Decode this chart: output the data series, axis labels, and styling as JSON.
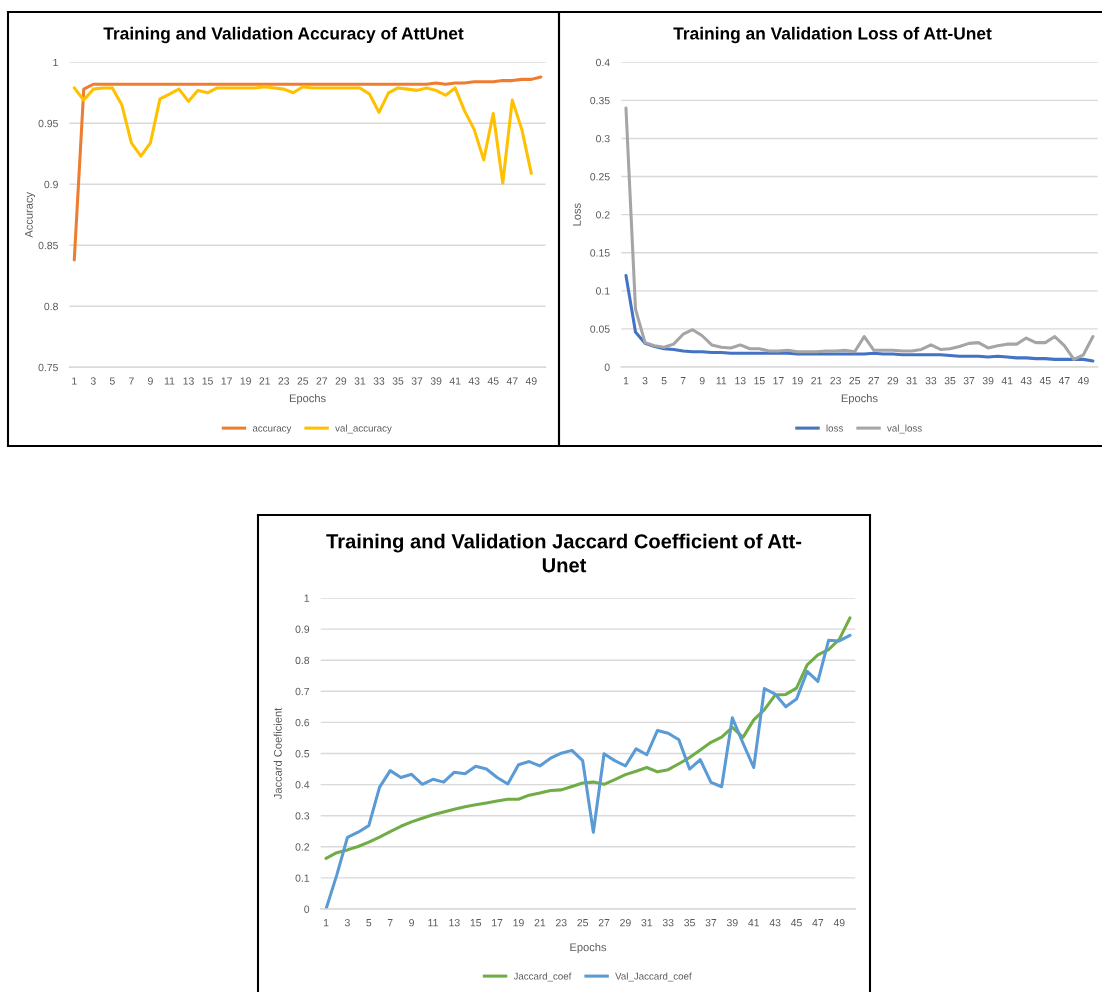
{
  "chart_data": [
    {
      "type": "line",
      "title": "Training and Validation Accuracy of AttUnet",
      "xlabel": "Epochs",
      "ylabel": "Accuracy",
      "categories": [
        "1",
        null,
        "3",
        null,
        "5",
        null,
        "7",
        null,
        "9",
        null,
        "11",
        null,
        "13",
        null,
        "15",
        null,
        "17",
        null,
        "19",
        null,
        "21",
        null,
        "23",
        null,
        "25",
        null,
        "27",
        null,
        "29",
        null,
        "31",
        null,
        "33",
        null,
        "35",
        null,
        "37",
        null,
        "39",
        null,
        "41",
        null,
        "43",
        null,
        "45",
        null,
        "47",
        null,
        "49",
        null
      ],
      "series": [
        {
          "name": "accuracy",
          "color": "#ed7d31",
          "values": [
            0.838,
            0.978,
            0.982,
            0.982,
            0.982,
            0.982,
            0.982,
            0.982,
            0.982,
            0.982,
            0.982,
            0.982,
            0.982,
            0.982,
            0.982,
            0.982,
            0.982,
            0.982,
            0.982,
            0.982,
            0.982,
            0.982,
            0.982,
            0.982,
            0.982,
            0.982,
            0.982,
            0.982,
            0.982,
            0.982,
            0.982,
            0.982,
            0.982,
            0.982,
            0.982,
            0.982,
            0.982,
            0.982,
            0.983,
            0.982,
            0.983,
            0.983,
            0.984,
            0.984,
            0.984,
            0.985,
            0.985,
            0.986,
            0.986,
            0.988
          ]
        },
        {
          "name": "val_accuracy",
          "color": "#ffc000",
          "values": [
            0.979,
            0.969,
            0.978,
            0.979,
            0.979,
            0.965,
            0.934,
            0.923,
            0.934,
            0.97,
            0.974,
            0.978,
            0.968,
            0.977,
            0.975,
            0.979,
            0.979,
            0.979,
            0.979,
            0.979,
            0.98,
            0.979,
            0.978,
            0.975,
            0.98,
            0.979,
            0.979,
            0.979,
            0.979,
            0.979,
            0.979,
            0.974,
            0.959,
            0.975,
            0.979,
            0.978,
            0.977,
            0.979,
            0.977,
            0.973,
            0.979,
            0.96,
            0.945,
            0.92,
            0.958,
            0.901,
            0.969,
            0.945,
            0.909,
            null
          ]
        }
      ],
      "ylim": [
        0.75,
        1
      ],
      "yticks": [
        0.75,
        0.8,
        0.85,
        0.9,
        0.95,
        1
      ],
      "grid": "y",
      "legend": "bottom"
    },
    {
      "type": "line",
      "title": "Training an Validation Loss of Att-Unet",
      "xlabel": "Epochs",
      "ylabel": "Loss",
      "categories": [
        "1",
        null,
        "3",
        null,
        "5",
        null,
        "7",
        null,
        "9",
        null,
        "11",
        null,
        "13",
        null,
        "15",
        null,
        "17",
        null,
        "19",
        null,
        "21",
        null,
        "23",
        null,
        "25",
        null,
        "27",
        null,
        "29",
        null,
        "31",
        null,
        "33",
        null,
        "35",
        null,
        "37",
        null,
        "39",
        null,
        "41",
        null,
        "43",
        null,
        "45",
        null,
        "47",
        null,
        "49",
        null
      ],
      "series": [
        {
          "name": "loss",
          "color": "#4472c4",
          "values": [
            0.12,
            0.046,
            0.031,
            0.027,
            0.024,
            0.023,
            0.021,
            0.02,
            0.02,
            0.019,
            0.019,
            0.018,
            0.018,
            0.018,
            0.018,
            0.018,
            0.018,
            0.018,
            0.017,
            0.017,
            0.017,
            0.017,
            0.017,
            0.017,
            0.017,
            0.017,
            0.018,
            0.017,
            0.017,
            0.016,
            0.016,
            0.016,
            0.016,
            0.016,
            0.015,
            0.014,
            0.014,
            0.014,
            0.013,
            0.014,
            0.013,
            0.012,
            0.012,
            0.011,
            0.011,
            0.01,
            0.01,
            0.01,
            0.01,
            0.008
          ]
        },
        {
          "name": "val_loss",
          "color": "#a5a5a5",
          "values": [
            0.34,
            0.076,
            0.032,
            0.028,
            0.026,
            0.03,
            0.043,
            0.049,
            0.041,
            0.029,
            0.026,
            0.025,
            0.029,
            0.024,
            0.024,
            0.021,
            0.021,
            0.022,
            0.02,
            0.02,
            0.02,
            0.021,
            0.021,
            0.022,
            0.02,
            0.04,
            0.022,
            0.022,
            0.022,
            0.021,
            0.021,
            0.023,
            0.029,
            0.023,
            0.024,
            0.027,
            0.031,
            0.032,
            0.025,
            0.028,
            0.03,
            0.03,
            0.038,
            0.032,
            0.032,
            0.04,
            0.028,
            0.01,
            0.016,
            0.04
          ]
        }
      ],
      "ylim": [
        0,
        0.4
      ],
      "yticks": [
        0,
        0.05,
        0.1,
        0.15,
        0.2,
        0.25,
        0.3,
        0.35,
        0.4
      ],
      "grid": "y",
      "legend": "bottom"
    },
    {
      "type": "line",
      "title": "Training and Validation Jaccard Coefficient of Att-Unet",
      "xlabel": "Epochs",
      "ylabel": "Jaccard Coeficient",
      "categories": [
        "1",
        null,
        "3",
        null,
        "5",
        null,
        "7",
        null,
        "9",
        null,
        "11",
        null,
        "13",
        null,
        "15",
        null,
        "17",
        null,
        "19",
        null,
        "21",
        null,
        "23",
        null,
        "25",
        null,
        "27",
        null,
        "29",
        null,
        "31",
        null,
        "33",
        null,
        "35",
        null,
        "37",
        null,
        "39",
        null,
        "41",
        null,
        "43",
        null,
        "45",
        null,
        "47",
        null,
        "49",
        null
      ],
      "series": [
        {
          "name": "Jaccard_coef",
          "color": "#70ad47",
          "values": [
            0.163,
            0.181,
            0.19,
            0.201,
            0.215,
            0.231,
            0.249,
            0.266,
            0.28,
            0.292,
            0.303,
            0.312,
            0.321,
            0.329,
            0.335,
            0.341,
            0.347,
            0.353,
            0.353,
            0.366,
            0.373,
            0.381,
            0.383,
            0.394,
            0.405,
            0.408,
            0.401,
            0.416,
            0.432,
            0.443,
            0.455,
            0.441,
            0.448,
            0.467,
            0.487,
            0.511,
            0.536,
            0.553,
            0.584,
            0.552,
            0.608,
            0.641,
            0.688,
            0.69,
            0.71,
            0.785,
            0.817,
            0.834,
            0.867,
            0.936
          ]
        },
        {
          "name": "Val_Jaccard_coef",
          "color": "#5b9bd5",
          "values": [
            0,
            0.109,
            0.23,
            0.247,
            0.268,
            0.391,
            0.445,
            0.423,
            0.433,
            0.401,
            0.417,
            0.408,
            0.44,
            0.435,
            0.459,
            0.45,
            0.423,
            0.402,
            0.464,
            0.474,
            0.46,
            0.485,
            0.501,
            0.51,
            0.477,
            0.247,
            0.499,
            0.477,
            0.46,
            0.515,
            0.496,
            0.574,
            0.565,
            0.544,
            0.45,
            0.48,
            0.407,
            0.393,
            0.615,
            0.533,
            0.455,
            0.709,
            0.691,
            0.65,
            0.675,
            0.764,
            0.732,
            0.864,
            0.862,
            0.88
          ]
        }
      ],
      "ylim": [
        0,
        1
      ],
      "yticks": [
        0,
        0.1,
        0.2,
        0.3,
        0.4,
        0.5,
        0.6,
        0.7,
        0.8,
        0.9,
        1
      ],
      "grid": "y",
      "legend": "bottom"
    }
  ]
}
